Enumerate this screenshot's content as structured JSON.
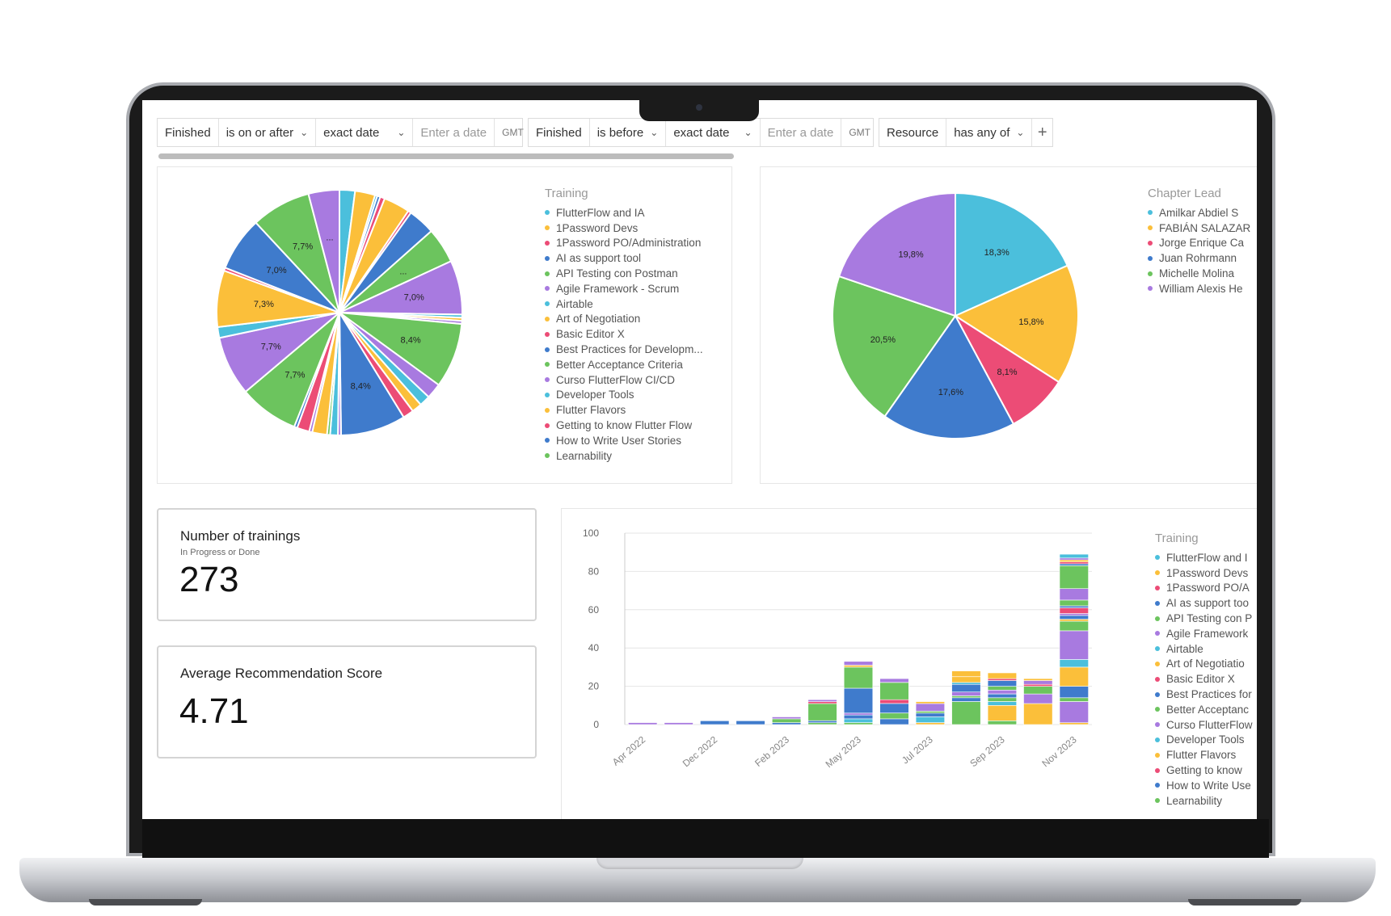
{
  "filters": [
    {
      "field": "Finished",
      "operator": "is on or after",
      "mode": "exact date",
      "placeholder": "Enter a date",
      "timezone": "GMT"
    },
    {
      "field": "Finished",
      "operator": "is before",
      "mode": "exact date",
      "placeholder": "Enter a date",
      "timezone": "GMT"
    },
    {
      "field": "Resource",
      "operator": "has any of"
    }
  ],
  "colors": [
    "#4bbfdc",
    "#fbbf3a",
    "#ec4c76",
    "#3f7bcc",
    "#6cc45e",
    "#a87ae0"
  ],
  "training_pie": {
    "legend_title": "Training",
    "legend": [
      "FlutterFlow and IA",
      "1Password Devs",
      "1Password PO/Administration",
      "AI as support tool",
      "API Testing con Postman",
      "Agile Framework - Scrum",
      "Airtable",
      "Art of Negotiation",
      "Basic Editor X",
      "Best Practices for Developm...",
      "Better Acceptance Criteria",
      "Curso FlutterFlow CI/CD",
      "Developer Tools",
      "Flutter Flavors",
      "Getting to know Flutter Flow",
      "How to Write User Stories",
      "Learnability"
    ]
  },
  "lead_pie": {
    "legend_title": "Chapter Lead",
    "legend": [
      "Amilkar Abdiel S",
      "FABIÁN SALAZAR",
      "Jorge Enrique Ca",
      "Juan Rohrmann",
      "Michelle Molina",
      "William Alexis He"
    ]
  },
  "kpis": {
    "trainings": {
      "title": "Number of trainings",
      "subtitle": "In Progress or Done",
      "value": "273"
    },
    "score": {
      "title": "Average Recommendation Score",
      "value": "4.71"
    }
  },
  "bar_legend": {
    "title": "Training",
    "items": [
      "FlutterFlow and I",
      "1Password Devs",
      "1Password PO/A",
      "AI as support too",
      "API Testing con P",
      "Agile Framework",
      "Airtable",
      "Art of Negotiatio",
      "Basic Editor X",
      "Best Practices for",
      "Better Acceptanc",
      "Curso FlutterFlow",
      "Developer Tools",
      "Flutter Flavors",
      "Getting to know",
      "How to Write Use",
      "Learnability"
    ]
  },
  "chart_data": [
    {
      "type": "pie",
      "legend_title": "Training",
      "slices": [
        {
          "color": "#4bbfdc",
          "value": 2.0
        },
        {
          "color": "#fbbf3a",
          "value": 2.6
        },
        {
          "color": "#4bbfdc",
          "value": 0.3
        },
        {
          "color": "#3f7bcc",
          "value": 0.4
        },
        {
          "color": "#ec4c76",
          "value": 0.6
        },
        {
          "color": "#fbbf3a",
          "value": 3.4
        },
        {
          "color": "#ec4c76",
          "value": 0.4
        },
        {
          "color": "#3f7bcc",
          "value": 3.5
        },
        {
          "color": "#6cc45e",
          "value": 4.6,
          "label": "..."
        },
        {
          "color": "#a87ae0",
          "value": 7.0,
          "label": "7,0%"
        },
        {
          "color": "#4bbfdc",
          "value": 0.4
        },
        {
          "color": "#fbbf3a",
          "value": 0.4
        },
        {
          "color": "#a87ae0",
          "value": 0.4
        },
        {
          "color": "#6cc45e",
          "value": 8.4,
          "label": "8,4%"
        },
        {
          "color": "#a87ae0",
          "value": 2.0
        },
        {
          "color": "#4bbfdc",
          "value": 1.4
        },
        {
          "color": "#fbbf3a",
          "value": 1.3
        },
        {
          "color": "#ec4c76",
          "value": 1.4
        },
        {
          "color": "#3f7bcc",
          "value": 8.4,
          "label": "8,4%"
        },
        {
          "color": "#a87ae0",
          "value": 0.4
        },
        {
          "color": "#4bbfdc",
          "value": 1.0
        },
        {
          "color": "#6cc45e",
          "value": 0.4
        },
        {
          "color": "#fbbf3a",
          "value": 1.9
        },
        {
          "color": "#a87ae0",
          "value": 0.4
        },
        {
          "color": "#ec4c76",
          "value": 1.6
        },
        {
          "color": "#3f7bcc",
          "value": 0.4
        },
        {
          "color": "#6cc45e",
          "value": 7.7,
          "label": "7,7%"
        },
        {
          "color": "#a87ae0",
          "value": 7.7,
          "label": "7,7%"
        },
        {
          "color": "#4bbfdc",
          "value": 1.4
        },
        {
          "color": "#fbbf3a",
          "value": 7.3,
          "label": "7,3%"
        },
        {
          "color": "#ec4c76",
          "value": 0.4
        },
        {
          "color": "#3f7bcc",
          "value": 7.0,
          "label": "7,0%"
        },
        {
          "color": "#6cc45e",
          "value": 7.7,
          "label": "7,7%"
        },
        {
          "color": "#a87ae0",
          "value": 4.0,
          "label": "..."
        }
      ]
    },
    {
      "type": "pie",
      "legend_title": "Chapter Lead",
      "slices": [
        {
          "name": "Amilkar Abdiel S",
          "color": "#4bbfdc",
          "value": 18.3,
          "label": "18,3%"
        },
        {
          "name": "FABIÁN SALAZAR",
          "color": "#fbbf3a",
          "value": 15.8,
          "label": "15,8%"
        },
        {
          "name": "Jorge Enrique Ca",
          "color": "#ec4c76",
          "value": 8.1,
          "label": "8,1%"
        },
        {
          "name": "Juan Rohrmann",
          "color": "#3f7bcc",
          "value": 17.6,
          "label": "17,6%"
        },
        {
          "name": "Michelle Molina",
          "color": "#6cc45e",
          "value": 20.5,
          "label": "20,5%"
        },
        {
          "name": "William Alexis He",
          "color": "#a87ae0",
          "value": 19.8,
          "label": "19,8%"
        }
      ]
    },
    {
      "type": "bar",
      "stacked": true,
      "legend_title": "Training",
      "x_tick_labels": [
        "Apr 2022",
        "Dec 2022",
        "Feb 2023",
        "May 2023",
        "Jul 2023",
        "Sep 2023",
        "Nov 2023"
      ],
      "ylim": [
        0,
        100
      ],
      "y_ticks": [
        0,
        20,
        40,
        60,
        80,
        100
      ],
      "grid": true,
      "bars": [
        {
          "segments": [
            {
              "color": "#a87ae0",
              "value": 1
            }
          ]
        },
        {
          "segments": [
            {
              "color": "#a87ae0",
              "value": 1
            }
          ]
        },
        {
          "segments": [
            {
              "color": "#3f7bcc",
              "value": 2
            }
          ]
        },
        {
          "segments": [
            {
              "color": "#3f7bcc",
              "value": 2
            }
          ]
        },
        {
          "segments": [
            {
              "color": "#3f7bcc",
              "value": 1
            },
            {
              "color": "#6cc45e",
              "value": 2
            },
            {
              "color": "#a87ae0",
              "value": 1
            }
          ]
        },
        {
          "segments": [
            {
              "color": "#6cc45e",
              "value": 1
            },
            {
              "color": "#3f7bcc",
              "value": 1
            },
            {
              "color": "#6cc45e",
              "value": 9
            },
            {
              "color": "#ec4c76",
              "value": 1
            },
            {
              "color": "#a87ae0",
              "value": 1
            }
          ]
        },
        {
          "segments": [
            {
              "color": "#6cc45e",
              "value": 1
            },
            {
              "color": "#4bbfdc",
              "value": 2
            },
            {
              "color": "#3f7bcc",
              "value": 2
            },
            {
              "color": "#a87ae0",
              "value": 1
            },
            {
              "color": "#3f7bcc",
              "value": 13
            },
            {
              "color": "#6cc45e",
              "value": 11
            },
            {
              "color": "#fbbf3a",
              "value": 1
            },
            {
              "color": "#a87ae0",
              "value": 2
            }
          ]
        },
        {
          "segments": [
            {
              "color": "#3f7bcc",
              "value": 3
            },
            {
              "color": "#6cc45e",
              "value": 3
            },
            {
              "color": "#3f7bcc",
              "value": 5
            },
            {
              "color": "#ec4c76",
              "value": 2
            },
            {
              "color": "#6cc45e",
              "value": 9
            },
            {
              "color": "#a87ae0",
              "value": 2
            }
          ]
        },
        {
          "segments": [
            {
              "color": "#fbbf3a",
              "value": 1
            },
            {
              "color": "#4bbfdc",
              "value": 3
            },
            {
              "color": "#3f7bcc",
              "value": 2
            },
            {
              "color": "#6cc45e",
              "value": 1
            },
            {
              "color": "#a87ae0",
              "value": 4
            },
            {
              "color": "#fbbf3a",
              "value": 1
            }
          ]
        },
        {
          "segments": [
            {
              "color": "#6cc45e",
              "value": 12
            },
            {
              "color": "#3f7bcc",
              "value": 2
            },
            {
              "color": "#6cc45e",
              "value": 1
            },
            {
              "color": "#a87ae0",
              "value": 2
            },
            {
              "color": "#3f7bcc",
              "value": 4
            },
            {
              "color": "#4bbfdc",
              "value": 1
            },
            {
              "color": "#fbbf3a",
              "value": 3
            },
            {
              "color": "#fbbf3a",
              "value": 3
            }
          ]
        },
        {
          "segments": [
            {
              "color": "#6cc45e",
              "value": 2
            },
            {
              "color": "#fbbf3a",
              "value": 8
            },
            {
              "color": "#4bbfdc",
              "value": 2
            },
            {
              "color": "#6cc45e",
              "value": 2
            },
            {
              "color": "#3f7bcc",
              "value": 2
            },
            {
              "color": "#a87ae0",
              "value": 2
            },
            {
              "color": "#6cc45e",
              "value": 2
            },
            {
              "color": "#3f7bcc",
              "value": 3
            },
            {
              "color": "#ec4c76",
              "value": 1
            },
            {
              "color": "#fbbf3a",
              "value": 3
            }
          ]
        },
        {
          "segments": [
            {
              "color": "#fbbf3a",
              "value": 11
            },
            {
              "color": "#a87ae0",
              "value": 5
            },
            {
              "color": "#6cc45e",
              "value": 4
            },
            {
              "color": "#ec4c76",
              "value": 1
            },
            {
              "color": "#a87ae0",
              "value": 2
            },
            {
              "color": "#fbbf3a",
              "value": 1
            }
          ]
        },
        {
          "segments": [
            {
              "color": "#fbbf3a",
              "value": 1
            },
            {
              "color": "#a87ae0",
              "value": 11
            },
            {
              "color": "#6cc45e",
              "value": 2
            },
            {
              "color": "#3f7bcc",
              "value": 6
            },
            {
              "color": "#fbbf3a",
              "value": 10
            },
            {
              "color": "#4bbfdc",
              "value": 4
            },
            {
              "color": "#a87ae0",
              "value": 15
            },
            {
              "color": "#6cc45e",
              "value": 5
            },
            {
              "color": "#fbbf3a",
              "value": 1
            },
            {
              "color": "#3f7bcc",
              "value": 2
            },
            {
              "color": "#a87ae0",
              "value": 1
            },
            {
              "color": "#ec4c76",
              "value": 3
            },
            {
              "color": "#3f7bcc",
              "value": 1
            },
            {
              "color": "#6cc45e",
              "value": 3
            },
            {
              "color": "#a87ae0",
              "value": 6
            },
            {
              "color": "#6cc45e",
              "value": 12
            },
            {
              "color": "#3f7bcc",
              "value": 1
            },
            {
              "color": "#ec4c76",
              "value": 1
            },
            {
              "color": "#fbbf3a",
              "value": 1
            },
            {
              "color": "#a87ae0",
              "value": 1
            },
            {
              "color": "#4bbfdc",
              "value": 2
            }
          ]
        }
      ]
    }
  ]
}
